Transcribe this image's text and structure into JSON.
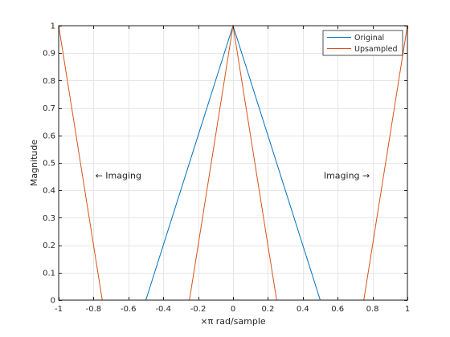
{
  "chart_data": {
    "type": "line",
    "title": "",
    "xlabel": "×π rad/sample",
    "ylabel": "Magnitude",
    "xlim": [
      -1,
      1
    ],
    "ylim": [
      0,
      1
    ],
    "x_ticks": [
      -1,
      -0.8,
      -0.6,
      -0.4,
      -0.2,
      0,
      0.2,
      0.4,
      0.6,
      0.8,
      1
    ],
    "x_tick_labels": [
      "-1",
      "-0.8",
      "-0.6",
      "-0.4",
      "-0.2",
      "0",
      "0.2",
      "0.4",
      "0.6",
      "0.8",
      "1"
    ],
    "y_ticks": [
      0,
      0.1,
      0.2,
      0.3,
      0.4,
      0.5,
      0.6,
      0.7,
      0.8,
      0.9,
      1
    ],
    "y_tick_labels": [
      "0",
      "0.1",
      "0.2",
      "0.3",
      "0.4",
      "0.5",
      "0.6",
      "0.7",
      "0.8",
      "0.9",
      "1"
    ],
    "grid": true,
    "legend_position": "top-right",
    "series": [
      {
        "name": "Original",
        "color": "#0072bd",
        "x": [
          -1,
          -0.5,
          0,
          0.5,
          1
        ],
        "y": [
          0,
          0,
          1,
          0,
          0
        ]
      },
      {
        "name": "Upsampled",
        "color": "#d95319",
        "x": [
          -1,
          -0.75,
          -0.25,
          0,
          0.25,
          0.75,
          1
        ],
        "y": [
          1,
          0,
          0,
          1,
          0,
          0,
          1
        ]
      }
    ],
    "annotations": [
      {
        "text": "← Imaging",
        "x": -0.79,
        "y": 0.455
      },
      {
        "text": "Imaging →",
        "x": 0.52,
        "y": 0.455
      }
    ]
  }
}
